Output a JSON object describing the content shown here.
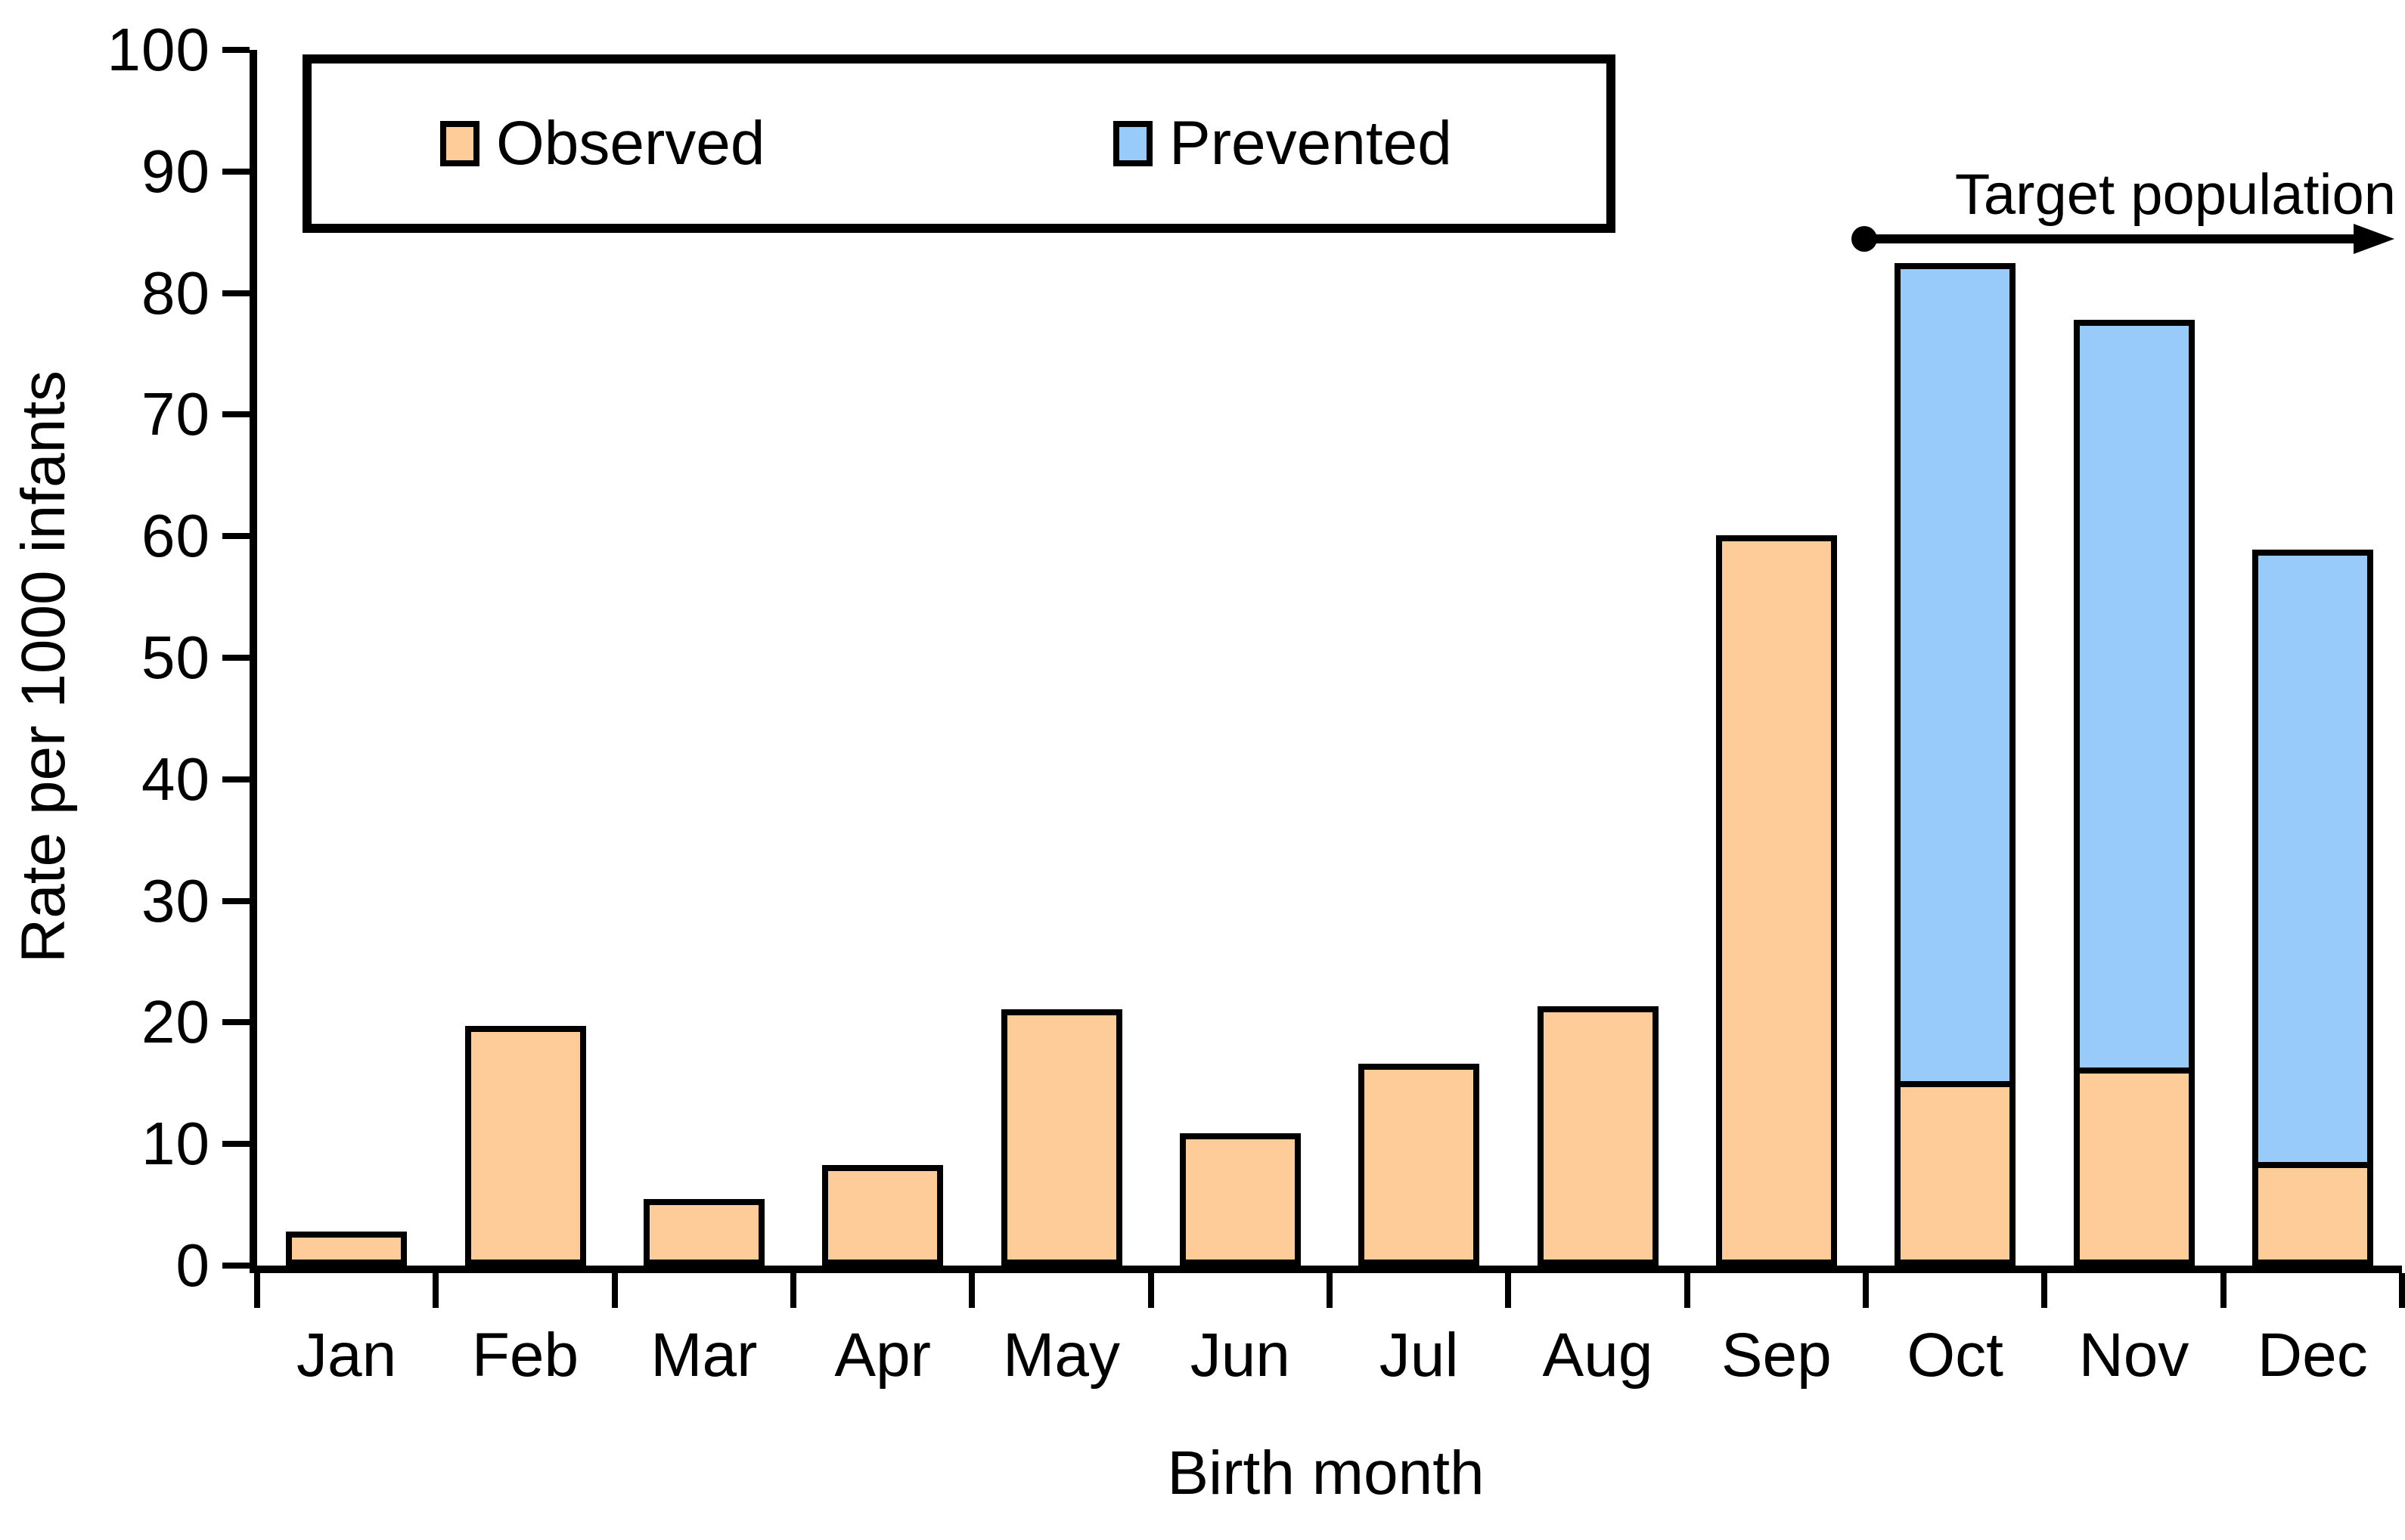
{
  "chart_data": {
    "type": "bar",
    "stacked": true,
    "title": "",
    "xlabel": "Birth month",
    "ylabel": "Rate per 1000 infants",
    "categories": [
      "Jan",
      "Feb",
      "Mar",
      "Apr",
      "May",
      "Jun",
      "Jul",
      "Aug",
      "Sep",
      "Oct",
      "Nov",
      "Dec"
    ],
    "series": [
      {
        "name": "Observed",
        "color": "#FECC99",
        "values": [
          2.8,
          19.7,
          5.5,
          8.3,
          21.1,
          10.9,
          16.6,
          21.3,
          60.1,
          15.2,
          16.3,
          8.5
        ]
      },
      {
        "name": "Prevented",
        "color": "#99CBFA",
        "values": [
          0,
          0,
          0,
          0,
          0,
          0,
          0,
          0,
          0,
          67.3,
          61.5,
          50.4
        ]
      }
    ],
    "stack_totals_visible": {
      "Oct": 82.5,
      "Nov": 77.8,
      "Dec": 58.9
    },
    "ylim": [
      0,
      100
    ],
    "yticks": [
      0,
      10,
      20,
      30,
      40,
      50,
      60,
      70,
      80,
      90,
      100
    ],
    "grid": "off",
    "legend": {
      "position": "top-left-box",
      "items": [
        "Observed",
        "Prevented"
      ]
    },
    "annotation": {
      "label": "Target population",
      "from_category": "Oct",
      "to_category": "Dec",
      "style": "dot-to-arrow"
    },
    "colors": {
      "axis": "#000000",
      "background": "#FFFFFF"
    }
  }
}
